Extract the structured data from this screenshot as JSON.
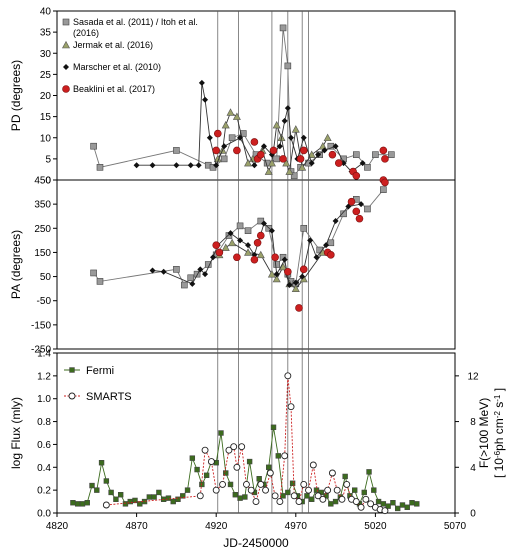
{
  "chart_data": [
    {
      "type": "scatter",
      "ylabel": "PD (degrees)",
      "ylim": [
        0,
        40
      ],
      "yticks": [
        0,
        5,
        10,
        15,
        20,
        25,
        30,
        35,
        40
      ],
      "xlim": [
        4820,
        5070
      ],
      "legend_position": "top-left",
      "series": [
        {
          "name": "Sasada et al. (2011) / Itoh et al. (2016)",
          "marker": "square",
          "color": "#999999",
          "lines": true,
          "x": [
            4843,
            4847,
            4895,
            4915,
            4918,
            4925,
            4930,
            4937,
            4945,
            4952,
            4958,
            4962,
            4965,
            4967,
            4969,
            4973,
            4978,
            4985,
            4992,
            5000,
            5008,
            5015,
            5020,
            5030
          ],
          "y": [
            8,
            3,
            7,
            3.5,
            3,
            5,
            10,
            11,
            6,
            4,
            5,
            36,
            27,
            2,
            1,
            3,
            4,
            6,
            8,
            5,
            6,
            3,
            6,
            6
          ]
        },
        {
          "name": "Jermak et al. (2016)",
          "marker": "triangle",
          "color": "#9aa16a",
          "lines": true,
          "x": [
            4921,
            4924,
            4926,
            4929,
            4933,
            4940,
            4943,
            4949,
            4953,
            4955,
            4958,
            4961,
            4964,
            4966,
            4970,
            4974,
            4980,
            4987,
            4990
          ],
          "y": [
            5,
            7,
            13,
            16,
            15,
            4,
            5,
            7,
            2,
            4,
            13,
            10,
            4,
            2,
            12,
            3,
            6,
            8,
            10
          ]
        },
        {
          "name": "Marscher et al. (2010)",
          "marker": "diamond",
          "color": "#111111",
          "lines": true,
          "x": [
            4870,
            4880,
            4895,
            4904,
            4909,
            4911,
            4913,
            4916,
            4920,
            4925,
            4935,
            4944,
            4950,
            4955,
            4960,
            4963,
            4965,
            4967,
            4971,
            4975,
            4980,
            4984,
            4988,
            4995,
            5000,
            5005,
            5012
          ],
          "y": [
            3.5,
            3.5,
            3.5,
            3.5,
            3.5,
            23,
            19,
            10,
            3.5,
            8,
            10,
            3.5,
            8,
            6,
            8,
            14,
            17,
            10,
            5,
            10,
            4,
            6,
            7,
            8,
            4,
            2,
            4
          ]
        },
        {
          "name": "Beaklini et al. (2017)",
          "marker": "circle",
          "color": "#cc1f1f",
          "lines": false,
          "x": [
            4920,
            4921,
            4933,
            4944,
            4946,
            4948,
            4956,
            4962,
            4973,
            4975,
            4993,
            4997,
            5006,
            5008,
            5025,
            5026
          ],
          "y": [
            7,
            11,
            7,
            9,
            5,
            6,
            7,
            5,
            5,
            7,
            6,
            4,
            2,
            1,
            7,
            5
          ]
        }
      ]
    },
    {
      "type": "scatter",
      "ylabel": "PA (degrees)",
      "ylim": [
        -250,
        450
      ],
      "yticks": [
        -250,
        -150,
        -50,
        50,
        150,
        250,
        350,
        450
      ],
      "xlim": [
        4820,
        5070
      ],
      "series": [
        {
          "name": "Sasada et al. (2011) / Itoh et al. (2016)",
          "marker": "square",
          "color": "#999999",
          "lines": true,
          "x": [
            4843,
            4847,
            4895,
            4900,
            4904,
            4908,
            4915,
            4920,
            4928,
            4935,
            4940,
            4948,
            4953,
            4958,
            4962,
            4965,
            4967,
            4970,
            4975,
            4985,
            4992,
            5000,
            5008,
            5015,
            5025
          ],
          "y": [
            65,
            30,
            80,
            15,
            45,
            60,
            100,
            140,
            220,
            260,
            240,
            280,
            250,
            100,
            130,
            60,
            30,
            20,
            250,
            160,
            190,
            310,
            370,
            330,
            410
          ]
        },
        {
          "name": "Jermak et al. (2016)",
          "marker": "triangle",
          "color": "#9aa16a",
          "lines": true,
          "x": [
            4922,
            4926,
            4930,
            4940,
            4948,
            4955,
            4958,
            4962,
            4966,
            4970,
            4975,
            4987
          ],
          "y": [
            140,
            170,
            190,
            150,
            140,
            60,
            40,
            90,
            20,
            0,
            40,
            150
          ]
        },
        {
          "name": "Marscher et al. (2010)",
          "marker": "diamond",
          "color": "#111111",
          "lines": true,
          "x": [
            4880,
            4887,
            4905,
            4910,
            4913,
            4918,
            4921,
            4929,
            4935,
            4940,
            4944,
            4950,
            4955,
            4958,
            4963,
            4966,
            4970,
            4974,
            4979,
            4983,
            4989,
            4995,
            5003,
            5011
          ],
          "y": [
            75,
            70,
            20,
            80,
            60,
            130,
            180,
            230,
            200,
            180,
            140,
            270,
            240,
            60,
            120,
            15,
            25,
            50,
            200,
            130,
            180,
            280,
            340,
            350
          ]
        },
        {
          "name": "Beaklini et al. (2017)",
          "marker": "circle",
          "color": "#cc1f1f",
          "lines": false,
          "x": [
            4920,
            4922,
            4933,
            4944,
            4946,
            4948,
            4957,
            4965,
            4972,
            4975,
            4990,
            4992,
            5005,
            5008,
            5010,
            5025,
            5026
          ],
          "y": [
            180,
            150,
            130,
            120,
            190,
            220,
            130,
            70,
            -80,
            80,
            150,
            140,
            360,
            320,
            290,
            450,
            440
          ]
        }
      ]
    },
    {
      "type": "line",
      "ylabel": "log Flux (mly)",
      "ylabel_right": [
        "F(>100 MeV)",
        "[ 10",
        "-6",
        "ph cm",
        "-2",
        " s",
        "-1",
        " ]"
      ],
      "xlabel": "JD-2450000",
      "xlim": [
        4820,
        5070
      ],
      "xticks": [
        4820,
        4870,
        4920,
        4970,
        5020,
        5070
      ],
      "ylim": [
        0,
        1.4
      ],
      "yticks": [
        0,
        0.2,
        0.4,
        0.6,
        0.8,
        1.0,
        1.2,
        1.4
      ],
      "ytick_labels": [
        "0.0",
        "0.2",
        "0.4",
        "0.6",
        "0.8",
        "1.0",
        "1.2",
        "1.4"
      ],
      "ylim_right": [
        0,
        14
      ],
      "yticks_right": [
        0,
        4,
        8,
        12
      ],
      "legend_position": "top-left",
      "series": [
        {
          "name": "Fermi",
          "marker": "square",
          "color": "#3c6b1e",
          "axis": "right",
          "lines": true,
          "x": [
            4830,
            4833,
            4836,
            4839,
            4842,
            4845,
            4848,
            4851,
            4854,
            4857,
            4860,
            4863,
            4866,
            4869,
            4872,
            4875,
            4878,
            4881,
            4884,
            4887,
            4890,
            4893,
            4896,
            4899,
            4902,
            4905,
            4908,
            4911,
            4914,
            4917,
            4920,
            4923,
            4926,
            4929,
            4932,
            4935,
            4938,
            4941,
            4944,
            4947,
            4950,
            4953,
            4956,
            4959,
            4962,
            4965,
            4968,
            4971,
            4974,
            4977,
            4980,
            4983,
            4986,
            4989,
            4992,
            4995,
            4998,
            5001,
            5004,
            5007,
            5010,
            5013,
            5016,
            5019,
            5022,
            5025,
            5028,
            5031,
            5034,
            5037,
            5040,
            5043,
            5046
          ],
          "y": [
            0.9,
            0.8,
            0.8,
            0.9,
            2.4,
            2.0,
            4.4,
            2.8,
            1.8,
            1.2,
            1.6,
            0.8,
            1.0,
            1.1,
            0.8,
            1.0,
            1.4,
            1.4,
            1.8,
            1.2,
            1.3,
            1.0,
            1.2,
            1.5,
            2.0,
            4.8,
            3.8,
            2.5,
            3.3,
            4.5,
            4.4,
            7.0,
            3.5,
            2.5,
            1.6,
            1.3,
            1.4,
            4.5,
            1.8,
            3.0,
            2.5,
            4.0,
            7.5,
            5.0,
            1.5,
            1.8,
            2.6,
            1.5,
            1.0,
            1.5,
            1.2,
            2.0,
            1.8,
            1.5,
            0.8,
            1.0,
            1.4,
            3.2,
            1.5,
            2.0,
            0.8,
            1.8,
            3.6,
            2.0,
            1.0,
            0.8,
            0.6,
            0.9,
            0.4,
            0.7,
            0.5,
            0.9,
            0.8
          ]
        },
        {
          "name": "SMARTS",
          "marker": "circle-open",
          "color": "#cc1f1f",
          "axis": "left",
          "lines": true,
          "x": [
            4851,
            4910,
            4913,
            4917,
            4920,
            4924,
            4928,
            4931,
            4933,
            4936,
            4939,
            4942,
            4945,
            4948,
            4951,
            4954,
            4957,
            4960,
            4963,
            4965,
            4967,
            4969,
            4972,
            4975,
            4978,
            4981,
            4984,
            4987,
            4990,
            4993,
            4996,
            4999,
            5002,
            5005,
            5008,
            5011,
            5014,
            5017,
            5020,
            5023,
            5026
          ],
          "y": [
            0.07,
            0.15,
            0.55,
            0.45,
            0.2,
            0.25,
            0.55,
            0.58,
            0.4,
            0.58,
            0.25,
            0.2,
            0.1,
            0.25,
            0.2,
            0.35,
            0.15,
            0.1,
            0.5,
            1.2,
            0.93,
            0.15,
            0.1,
            0.25,
            0.2,
            0.42,
            0.15,
            0.12,
            0.2,
            0.35,
            0.2,
            0.12,
            0.25,
            0.12,
            0.1,
            0.05,
            0.12,
            0.08,
            0.05,
            0.03,
            0.02
          ]
        }
      ]
    }
  ],
  "vertical_markers_x": [
    4921,
    4934,
    4955,
    4965,
    4974,
    4978
  ]
}
